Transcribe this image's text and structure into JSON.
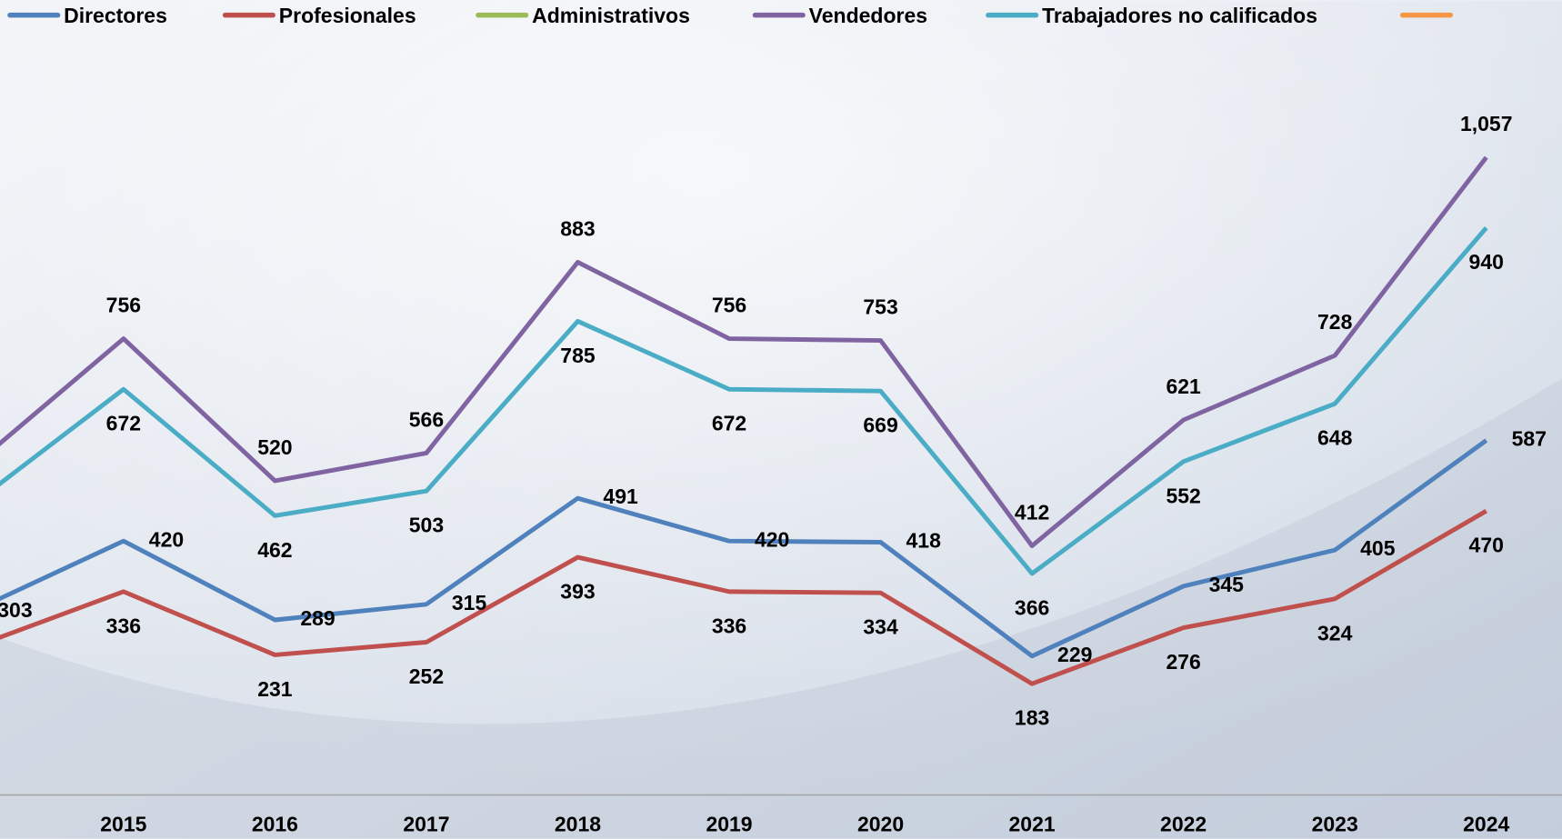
{
  "chart_data": {
    "type": "line",
    "categories": [
      null,
      "2015",
      "2016",
      "2017",
      "2018",
      "2019",
      "2020",
      "2021",
      "2022",
      "2023",
      "2024"
    ],
    "ylim": [
      0,
      1318
    ],
    "series": [
      {
        "name": "Directores",
        "color": "#4f81bd",
        "values": [
          303,
          420,
          289,
          315,
          491,
          420,
          418,
          229,
          345,
          405,
          587
        ],
        "value_labels": [
          "303",
          "420",
          "289",
          "315",
          "491",
          "420",
          "418",
          "229",
          "345",
          "405",
          "587"
        ]
      },
      {
        "name": "Profesionales",
        "color": "#c0504d",
        "values": [
          243,
          336,
          231,
          252,
          393,
          336,
          334,
          183,
          276,
          324,
          470
        ],
        "value_labels": [
          null,
          "336",
          "231",
          "252",
          "393",
          "336",
          "334",
          "183",
          "276",
          "324",
          "470"
        ]
      },
      {
        "name": "Administrativos",
        "color": "#9bbb59",
        "values": [
          null,
          null,
          null,
          null,
          null,
          null,
          null,
          null,
          null,
          null,
          null
        ]
      },
      {
        "name": "Vendedores",
        "color": "#8064a2",
        "values": [
          543,
          756,
          520,
          566,
          883,
          756,
          753,
          412,
          621,
          728,
          1057
        ],
        "value_labels": [
          null,
          "756",
          "520",
          "566",
          "883",
          "756",
          "753",
          "412",
          "621",
          "728",
          "1,057"
        ]
      },
      {
        "name": "Trabajadores no calificados",
        "color": "#4bacc6",
        "values": [
          480,
          672,
          462,
          503,
          785,
          672,
          669,
          366,
          552,
          648,
          940
        ],
        "value_labels": [
          null,
          "672",
          "462",
          "503",
          "785",
          "672",
          "669",
          "366",
          "552",
          "648",
          "940"
        ]
      },
      {
        "color": "#f79646",
        "values": [
          null,
          null,
          null,
          null,
          null,
          null,
          null,
          null,
          null,
          null,
          null
        ]
      }
    ]
  }
}
